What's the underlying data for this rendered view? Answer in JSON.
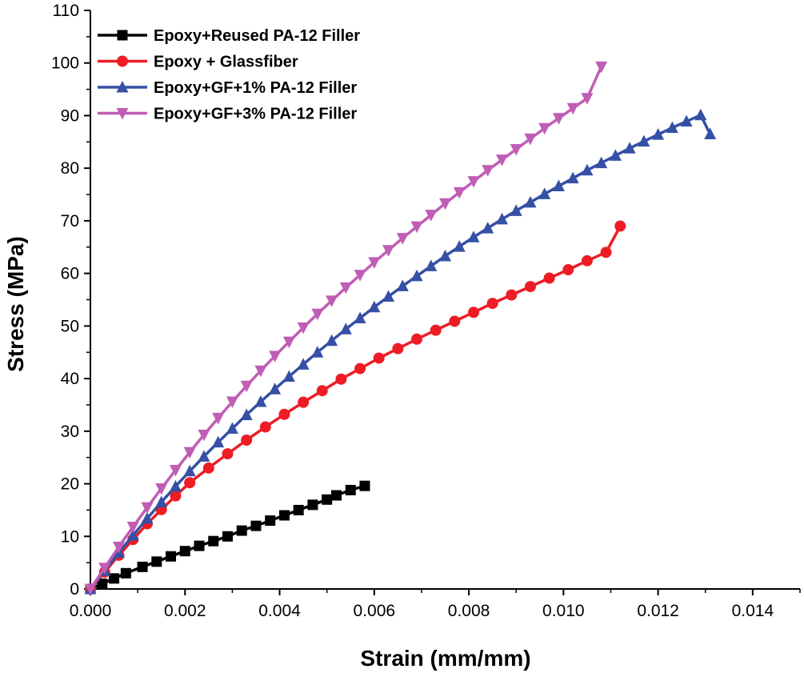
{
  "chart_data": {
    "type": "line",
    "title": "",
    "xlabel": "Strain (mm/mm)",
    "ylabel": "Stress (MPa)",
    "xlim": [
      0,
      0.015
    ],
    "ylim": [
      0,
      110
    ],
    "x_ticks": [
      "0.000",
      "0.002",
      "0.004",
      "0.006",
      "0.008",
      "0.010",
      "0.012",
      "0.014"
    ],
    "x_tick_values": [
      0,
      0.002,
      0.004,
      0.006,
      0.008,
      0.01,
      0.012,
      0.014
    ],
    "y_ticks": [
      "0",
      "10",
      "20",
      "30",
      "40",
      "50",
      "60",
      "70",
      "80",
      "90",
      "100",
      "110"
    ],
    "y_tick_values": [
      0,
      10,
      20,
      30,
      40,
      50,
      60,
      70,
      80,
      90,
      100,
      110
    ],
    "grid": false,
    "legend_position": "top-left",
    "series": [
      {
        "name": "Epoxy+Reused PA-12 Filler",
        "color": "#000000",
        "marker": "square",
        "x": [
          0.0,
          0.00025,
          0.0005,
          0.00075,
          0.0011,
          0.0014,
          0.0017,
          0.002,
          0.0023,
          0.0026,
          0.0029,
          0.0032,
          0.0035,
          0.0038,
          0.0041,
          0.0044,
          0.0047,
          0.005,
          0.0052,
          0.0055,
          0.0058
        ],
        "y": [
          0.0,
          1.0,
          2.0,
          3.0,
          4.2,
          5.2,
          6.2,
          7.2,
          8.2,
          9.1,
          10.0,
          11.1,
          12.0,
          13.0,
          14.0,
          15.0,
          16.0,
          17.0,
          17.8,
          18.8,
          19.6
        ]
      },
      {
        "name": "Epoxy + Glassfiber",
        "color": "#ee1c25",
        "marker": "circle",
        "x": [
          0.0,
          0.0003,
          0.0006,
          0.0009,
          0.0012,
          0.0015,
          0.0018,
          0.0021,
          0.0025,
          0.0029,
          0.0033,
          0.0037,
          0.0041,
          0.0045,
          0.0049,
          0.0053,
          0.0057,
          0.0061,
          0.0065,
          0.0069,
          0.0073,
          0.0077,
          0.0081,
          0.0085,
          0.0089,
          0.0093,
          0.0097,
          0.0101,
          0.0105,
          0.0109,
          0.0112
        ],
        "y": [
          0.0,
          3.2,
          6.4,
          9.4,
          12.4,
          15.1,
          17.7,
          20.2,
          23.0,
          25.7,
          28.3,
          30.8,
          33.2,
          35.5,
          37.7,
          39.9,
          41.9,
          43.9,
          45.7,
          47.5,
          49.2,
          50.9,
          52.6,
          54.3,
          55.9,
          57.5,
          59.1,
          60.7,
          62.4,
          64.0,
          69.0
        ]
      },
      {
        "name": "Epoxy+GF+1% PA-12 Filler",
        "color": "#3550a5",
        "marker": "triangle-up",
        "x": [
          0.0,
          0.0003,
          0.0006,
          0.0009,
          0.0012,
          0.0015,
          0.0018,
          0.0021,
          0.0024,
          0.0027,
          0.003,
          0.0033,
          0.0036,
          0.0039,
          0.0042,
          0.0045,
          0.0048,
          0.0051,
          0.0054,
          0.0057,
          0.006,
          0.0063,
          0.0066,
          0.0069,
          0.0072,
          0.0075,
          0.0078,
          0.0081,
          0.0084,
          0.0087,
          0.009,
          0.0093,
          0.0096,
          0.0099,
          0.0102,
          0.0105,
          0.0108,
          0.0111,
          0.0114,
          0.0117,
          0.012,
          0.0123,
          0.0126,
          0.0129,
          0.0131
        ],
        "y": [
          0.0,
          3.5,
          6.9,
          10.2,
          13.4,
          16.5,
          19.5,
          22.4,
          25.2,
          27.9,
          30.5,
          33.1,
          35.6,
          38.0,
          40.4,
          42.7,
          45.0,
          47.2,
          49.4,
          51.5,
          53.6,
          55.6,
          57.6,
          59.5,
          61.4,
          63.3,
          65.1,
          66.9,
          68.6,
          70.3,
          71.9,
          73.5,
          75.1,
          76.6,
          78.1,
          79.6,
          81.0,
          82.4,
          83.8,
          85.1,
          86.4,
          87.7,
          88.9,
          90.1,
          86.5
        ]
      },
      {
        "name": "Epoxy+GF+3% PA-12 Filler",
        "color": "#c05db5",
        "marker": "triangle-down",
        "x": [
          0.0,
          0.0003,
          0.0006,
          0.0009,
          0.0012,
          0.0015,
          0.0018,
          0.0021,
          0.0024,
          0.0027,
          0.003,
          0.0033,
          0.0036,
          0.0039,
          0.0042,
          0.0045,
          0.0048,
          0.0051,
          0.0054,
          0.0057,
          0.006,
          0.0063,
          0.0066,
          0.0069,
          0.0072,
          0.0075,
          0.0078,
          0.0081,
          0.0084,
          0.0087,
          0.009,
          0.0093,
          0.0096,
          0.0099,
          0.0102,
          0.0105,
          0.0108
        ],
        "y": [
          0.0,
          4.0,
          8.0,
          11.8,
          15.5,
          19.1,
          22.6,
          26.0,
          29.3,
          32.5,
          35.6,
          38.6,
          41.5,
          44.3,
          47.0,
          49.7,
          52.3,
          54.8,
          57.3,
          59.7,
          62.1,
          64.4,
          66.7,
          68.9,
          71.1,
          73.3,
          75.4,
          77.5,
          79.6,
          81.6,
          83.6,
          85.6,
          87.6,
          89.5,
          91.4,
          93.3,
          99.3
        ]
      }
    ]
  }
}
